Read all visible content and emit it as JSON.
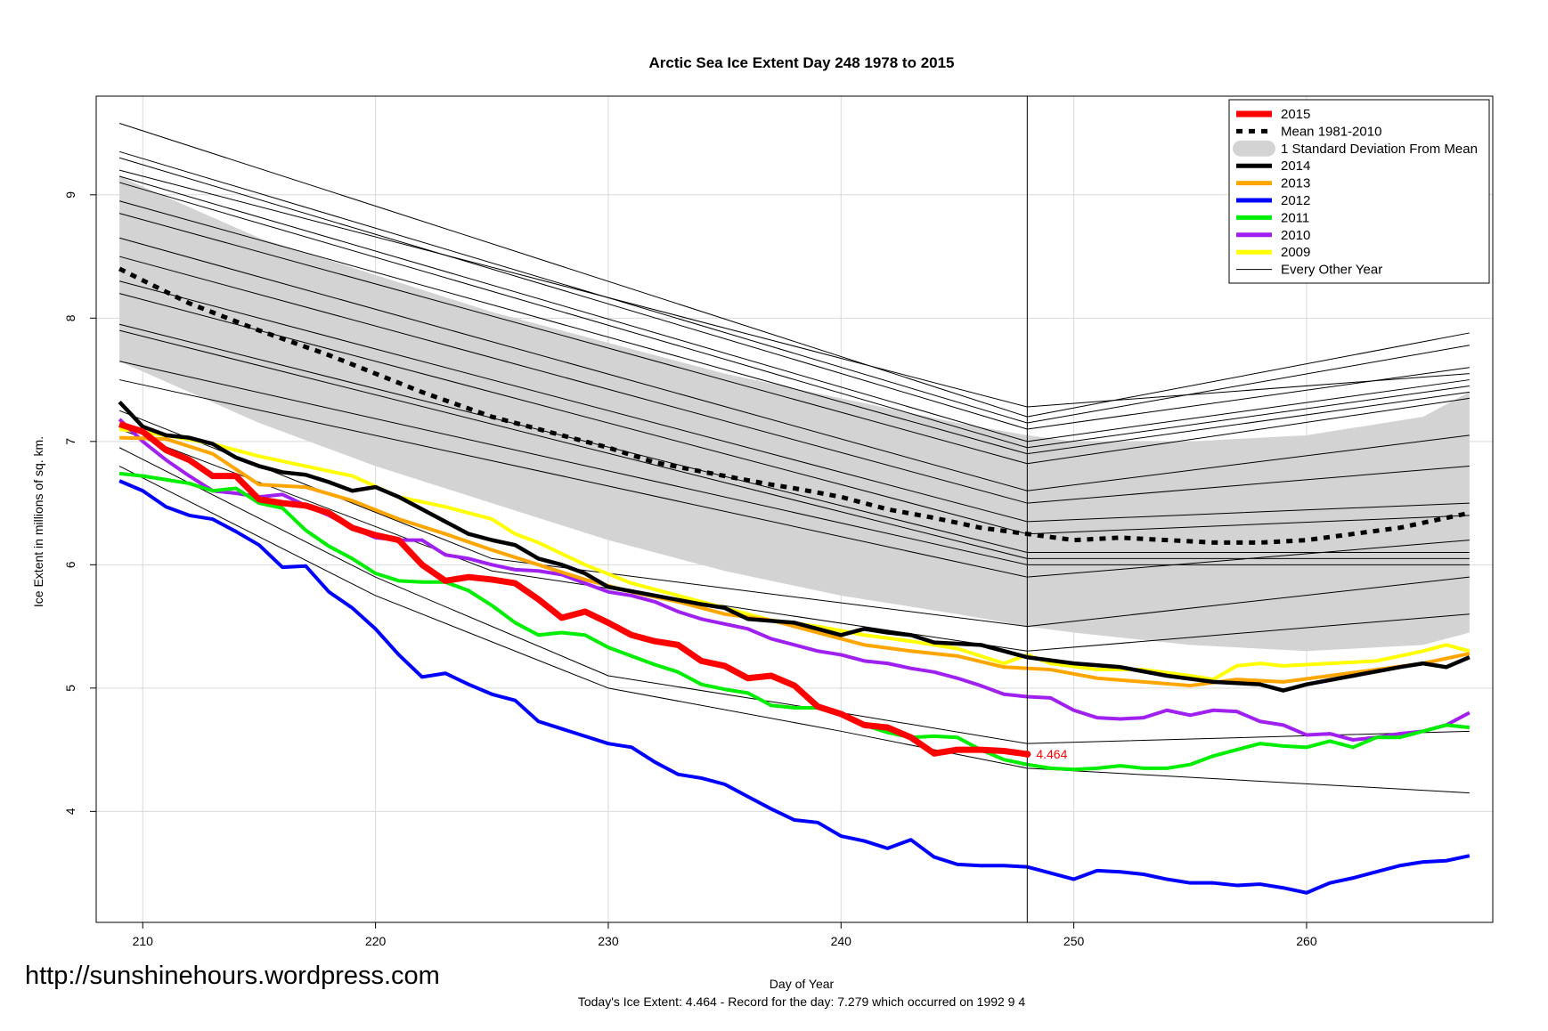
{
  "chart_data": {
    "type": "line",
    "title": "Arctic Sea Ice Extent Day 248 1978 to 2015",
    "xlabel": "Day of Year",
    "ylabel": "Ice Extent in millions of sq. km.",
    "subtitle": "Today's Ice Extent: 4.464  - Record for the day: 7.279 which occurred on 1992 9 4",
    "xlim": [
      208,
      268
    ],
    "ylim": [
      3.1,
      9.8
    ],
    "x_ticks": [
      210,
      220,
      230,
      240,
      250,
      260
    ],
    "y_ticks": [
      4,
      5,
      6,
      7,
      8,
      9
    ],
    "current_day": 248,
    "grid": true,
    "legend_position": "top-right",
    "annotation": {
      "x": 248,
      "y": 4.464,
      "text": "4.464",
      "color": "#ff0000"
    },
    "band": {
      "name": "1 Standard Deviation From Mean",
      "color": "#d3d3d3",
      "x": [
        209,
        215,
        220,
        225,
        230,
        235,
        240,
        245,
        248,
        250,
        255,
        260,
        265,
        267
      ],
      "upper": [
        9.15,
        8.65,
        8.35,
        8.05,
        7.8,
        7.55,
        7.35,
        7.15,
        7.05,
        7.0,
        7.0,
        7.05,
        7.2,
        7.4
      ],
      "lower": [
        7.65,
        7.15,
        6.8,
        6.5,
        6.2,
        5.95,
        5.75,
        5.6,
        5.5,
        5.45,
        5.35,
        5.3,
        5.35,
        5.45
      ]
    },
    "series": [
      {
        "name": "2015",
        "color": "#ff0000",
        "width": 7,
        "dash": "",
        "x": [
          209,
          210,
          211,
          212,
          213,
          214,
          215,
          216,
          217,
          218,
          219,
          220,
          221,
          222,
          223,
          224,
          225,
          226,
          227,
          228,
          229,
          230,
          231,
          232,
          233,
          234,
          235,
          236,
          237,
          238,
          239,
          240,
          241,
          242,
          243,
          244,
          245,
          246,
          247,
          248
        ],
        "values": [
          7.14,
          7.08,
          6.93,
          6.85,
          6.72,
          6.72,
          6.53,
          6.5,
          6.48,
          6.42,
          6.3,
          6.24,
          6.2,
          6.0,
          5.87,
          5.9,
          5.88,
          5.85,
          5.72,
          5.57,
          5.62,
          5.53,
          5.43,
          5.38,
          5.35,
          5.22,
          5.18,
          5.08,
          5.1,
          5.02,
          4.85,
          4.79,
          4.7,
          4.68,
          4.6,
          4.47,
          4.5,
          4.5,
          4.49,
          4.464
        ]
      },
      {
        "name": "Mean 1981-2010",
        "color": "#000000",
        "width": 5,
        "dash": "7,7",
        "x": [
          209,
          212,
          215,
          218,
          220,
          222,
          225,
          228,
          230,
          232,
          235,
          237,
          238,
          240,
          242,
          244,
          246,
          248,
          250,
          252,
          254,
          256,
          258,
          260,
          262,
          264,
          267
        ],
        "values": [
          8.4,
          8.12,
          7.9,
          7.7,
          7.55,
          7.4,
          7.2,
          7.05,
          6.95,
          6.83,
          6.72,
          6.65,
          6.62,
          6.55,
          6.45,
          6.38,
          6.3,
          6.25,
          6.2,
          6.22,
          6.2,
          6.18,
          6.18,
          6.2,
          6.25,
          6.3,
          6.42
        ]
      },
      {
        "name": "2014",
        "color": "#000000",
        "width": 4.5,
        "dash": "",
        "x": [
          209,
          210,
          211,
          212,
          213,
          214,
          215,
          216,
          217,
          218,
          219,
          220,
          221,
          222,
          223,
          224,
          225,
          226,
          227,
          228,
          229,
          230,
          232,
          234,
          235,
          236,
          238,
          240,
          241,
          242,
          243,
          244,
          246,
          248,
          250,
          252,
          254,
          256,
          258,
          259,
          260,
          262,
          264,
          265,
          266,
          267
        ],
        "values": [
          7.32,
          7.12,
          7.05,
          7.03,
          6.98,
          6.87,
          6.8,
          6.75,
          6.73,
          6.67,
          6.6,
          6.63,
          6.55,
          6.45,
          6.35,
          6.25,
          6.2,
          6.16,
          6.05,
          6.0,
          5.93,
          5.82,
          5.75,
          5.68,
          5.65,
          5.56,
          5.53,
          5.43,
          5.48,
          5.45,
          5.43,
          5.37,
          5.35,
          5.25,
          5.2,
          5.17,
          5.1,
          5.05,
          5.03,
          4.98,
          5.03,
          5.1,
          5.17,
          5.2,
          5.17,
          5.25
        ]
      },
      {
        "name": "2013",
        "color": "#ffa500",
        "width": 4,
        "dash": "",
        "x": [
          209,
          211,
          213,
          215,
          217,
          219,
          221,
          223,
          225,
          227,
          229,
          231,
          233,
          235,
          237,
          239,
          241,
          243,
          245,
          247,
          249,
          251,
          253,
          255,
          257,
          259,
          261,
          263,
          265,
          267
        ],
        "values": [
          7.03,
          7.02,
          6.9,
          6.65,
          6.63,
          6.52,
          6.37,
          6.25,
          6.12,
          6.0,
          5.88,
          5.78,
          5.7,
          5.6,
          5.55,
          5.45,
          5.35,
          5.3,
          5.26,
          5.17,
          5.15,
          5.08,
          5.05,
          5.02,
          5.07,
          5.05,
          5.1,
          5.15,
          5.2,
          5.28
        ]
      },
      {
        "name": "2012",
        "color": "#0000ff",
        "width": 4,
        "dash": "",
        "x": [
          209,
          210,
          211,
          212,
          213,
          214,
          215,
          216,
          217,
          218,
          219,
          220,
          221,
          222,
          223,
          224,
          225,
          226,
          227,
          228,
          229,
          230,
          231,
          232,
          233,
          234,
          235,
          236,
          237,
          238,
          239,
          240,
          241,
          242,
          243,
          244,
          245,
          246,
          247,
          248,
          249,
          250,
          251,
          252,
          253,
          254,
          255,
          256,
          257,
          258,
          259,
          260,
          261,
          262,
          263,
          264,
          265,
          266,
          267
        ],
        "values": [
          6.68,
          6.6,
          6.47,
          6.4,
          6.37,
          6.27,
          6.16,
          5.98,
          5.99,
          5.78,
          5.65,
          5.48,
          5.27,
          5.09,
          5.12,
          5.03,
          4.95,
          4.9,
          4.73,
          4.67,
          4.61,
          4.55,
          4.52,
          4.4,
          4.3,
          4.27,
          4.22,
          4.12,
          4.02,
          3.93,
          3.91,
          3.8,
          3.76,
          3.7,
          3.77,
          3.63,
          3.57,
          3.56,
          3.56,
          3.55,
          3.5,
          3.45,
          3.52,
          3.51,
          3.49,
          3.45,
          3.42,
          3.42,
          3.4,
          3.41,
          3.38,
          3.34,
          3.42,
          3.46,
          3.51,
          3.56,
          3.59,
          3.6,
          3.64
        ]
      },
      {
        "name": "2011",
        "color": "#00ee00",
        "width": 4,
        "dash": "",
        "x": [
          209,
          210,
          211,
          212,
          213,
          214,
          215,
          216,
          217,
          218,
          219,
          220,
          221,
          222,
          223,
          224,
          225,
          226,
          227,
          228,
          229,
          230,
          231,
          232,
          233,
          234,
          235,
          236,
          237,
          238,
          239,
          240,
          241,
          242,
          243,
          244,
          245,
          246,
          247,
          248,
          249,
          250,
          251,
          252,
          253,
          254,
          255,
          256,
          257,
          258,
          259,
          260,
          261,
          262,
          263,
          264,
          265,
          266,
          267
        ],
        "values": [
          6.74,
          6.72,
          6.69,
          6.66,
          6.6,
          6.62,
          6.5,
          6.46,
          6.28,
          6.15,
          6.05,
          5.93,
          5.87,
          5.86,
          5.86,
          5.79,
          5.67,
          5.53,
          5.43,
          5.45,
          5.43,
          5.33,
          5.26,
          5.19,
          5.13,
          5.03,
          4.99,
          4.96,
          4.86,
          4.84,
          4.84,
          4.78,
          4.7,
          4.64,
          4.6,
          4.61,
          4.6,
          4.5,
          4.42,
          4.38,
          4.35,
          4.34,
          4.35,
          4.37,
          4.35,
          4.35,
          4.38,
          4.45,
          4.5,
          4.55,
          4.53,
          4.52,
          4.57,
          4.52,
          4.6,
          4.6,
          4.65,
          4.7,
          4.68
        ]
      },
      {
        "name": "2010",
        "color": "#a020f0",
        "width": 4,
        "dash": "",
        "x": [
          209,
          210,
          211,
          212,
          213,
          214,
          215,
          216,
          217,
          218,
          219,
          220,
          221,
          222,
          223,
          224,
          225,
          226,
          227,
          228,
          229,
          230,
          231,
          232,
          233,
          234,
          235,
          236,
          237,
          238,
          239,
          240,
          241,
          242,
          243,
          244,
          245,
          246,
          247,
          248,
          249,
          250,
          251,
          252,
          253,
          254,
          255,
          256,
          257,
          258,
          259,
          260,
          261,
          262,
          263,
          264,
          265,
          266,
          267
        ],
        "values": [
          7.18,
          7.0,
          6.85,
          6.72,
          6.6,
          6.58,
          6.55,
          6.57,
          6.48,
          6.4,
          6.3,
          6.22,
          6.2,
          6.2,
          6.08,
          6.05,
          6.0,
          5.96,
          5.95,
          5.92,
          5.85,
          5.78,
          5.75,
          5.7,
          5.62,
          5.56,
          5.52,
          5.48,
          5.4,
          5.35,
          5.3,
          5.27,
          5.22,
          5.2,
          5.16,
          5.13,
          5.08,
          5.02,
          4.95,
          4.93,
          4.92,
          4.82,
          4.76,
          4.75,
          4.76,
          4.82,
          4.78,
          4.82,
          4.81,
          4.73,
          4.7,
          4.62,
          4.63,
          4.58,
          4.6,
          4.63,
          4.65,
          4.7,
          4.8
        ]
      },
      {
        "name": "2009",
        "color": "#ffff00",
        "width": 4,
        "dash": "",
        "x": [
          209,
          211,
          213,
          215,
          217,
          219,
          221,
          223,
          225,
          226,
          227,
          229,
          231,
          233,
          235,
          237,
          239,
          241,
          243,
          245,
          247,
          248,
          249,
          251,
          253,
          255,
          256,
          257,
          258,
          259,
          261,
          263,
          265,
          266,
          267
        ],
        "values": [
          7.1,
          7.05,
          6.98,
          6.88,
          6.8,
          6.72,
          6.55,
          6.47,
          6.37,
          6.25,
          6.18,
          6.0,
          5.85,
          5.75,
          5.65,
          5.55,
          5.5,
          5.43,
          5.38,
          5.32,
          5.2,
          5.27,
          5.2,
          5.15,
          5.15,
          5.1,
          5.07,
          5.18,
          5.2,
          5.18,
          5.2,
          5.22,
          5.3,
          5.35,
          5.3
        ]
      },
      {
        "name": "Every Other Year",
        "color": "#000000",
        "width": 1,
        "dash": "",
        "x": [
          209,
          248,
          267
        ],
        "values": [
          9.58,
          7.2,
          7.88
        ]
      },
      {
        "name": "",
        "color": "#000000",
        "width": 1,
        "dash": "",
        "x": [
          209,
          248,
          267
        ],
        "values": [
          9.35,
          7.15,
          7.78
        ]
      },
      {
        "name": "",
        "color": "#000000",
        "width": 1,
        "dash": "",
        "x": [
          209,
          248,
          267
        ],
        "values": [
          9.3,
          7.1,
          7.6
        ]
      },
      {
        "name": "",
        "color": "#000000",
        "width": 1,
        "dash": "",
        "x": [
          209,
          248,
          267
        ],
        "values": [
          9.2,
          7.28,
          7.55
        ]
      },
      {
        "name": "",
        "color": "#000000",
        "width": 1,
        "dash": "",
        "x": [
          209,
          248,
          267
        ],
        "values": [
          9.15,
          7.0,
          7.5
        ]
      },
      {
        "name": "",
        "color": "#000000",
        "width": 1,
        "dash": "",
        "x": [
          209,
          248,
          267
        ],
        "values": [
          9.1,
          6.95,
          7.45
        ]
      },
      {
        "name": "",
        "color": "#000000",
        "width": 1,
        "dash": "",
        "x": [
          209,
          248,
          267
        ],
        "values": [
          8.95,
          6.9,
          7.4
        ]
      },
      {
        "name": "",
        "color": "#000000",
        "width": 1,
        "dash": "",
        "x": [
          209,
          248,
          267
        ],
        "values": [
          8.85,
          6.82,
          7.35
        ]
      },
      {
        "name": "",
        "color": "#000000",
        "width": 1,
        "dash": "",
        "x": [
          209,
          248,
          267
        ],
        "values": [
          8.65,
          6.6,
          7.05
        ]
      },
      {
        "name": "",
        "color": "#000000",
        "width": 1,
        "dash": "",
        "x": [
          209,
          248,
          267
        ],
        "values": [
          8.5,
          6.5,
          6.8
        ]
      },
      {
        "name": "",
        "color": "#000000",
        "width": 1,
        "dash": "",
        "x": [
          209,
          248,
          267
        ],
        "values": [
          8.3,
          6.35,
          6.5
        ]
      },
      {
        "name": "",
        "color": "#000000",
        "width": 1,
        "dash": "",
        "x": [
          209,
          248,
          267
        ],
        "values": [
          8.2,
          6.25,
          6.4
        ]
      },
      {
        "name": "",
        "color": "#000000",
        "width": 1,
        "dash": "",
        "x": [
          209,
          248,
          267
        ],
        "values": [
          7.95,
          6.1,
          6.1
        ]
      },
      {
        "name": "",
        "color": "#000000",
        "width": 1,
        "dash": "",
        "x": [
          209,
          248,
          267
        ],
        "values": [
          7.9,
          6.05,
          6.05
        ]
      },
      {
        "name": "",
        "color": "#000000",
        "width": 1,
        "dash": "",
        "x": [
          209,
          248,
          267
        ],
        "values": [
          7.65,
          6.0,
          6.0
        ]
      },
      {
        "name": "",
        "color": "#000000",
        "width": 1,
        "dash": "",
        "x": [
          209,
          248,
          267
        ],
        "values": [
          7.5,
          5.9,
          6.2
        ]
      },
      {
        "name": "",
        "color": "#000000",
        "width": 1,
        "dash": "",
        "x": [
          209,
          225,
          248,
          267
        ],
        "values": [
          7.25,
          6.05,
          5.5,
          5.9
        ]
      },
      {
        "name": "",
        "color": "#000000",
        "width": 1,
        "dash": "",
        "x": [
          209,
          225,
          248,
          267
        ],
        "values": [
          7.1,
          5.95,
          5.3,
          5.6
        ]
      },
      {
        "name": "",
        "color": "#000000",
        "width": 1,
        "dash": "",
        "x": [
          209,
          220,
          230,
          240,
          248,
          267
        ],
        "values": [
          6.95,
          5.9,
          5.1,
          4.8,
          4.55,
          4.65
        ]
      },
      {
        "name": "",
        "color": "#000000",
        "width": 1,
        "dash": "",
        "x": [
          209,
          220,
          230,
          240,
          248,
          267
        ],
        "values": [
          6.8,
          5.75,
          5.0,
          4.65,
          4.35,
          4.15
        ]
      }
    ]
  },
  "legend": [
    {
      "label": "2015",
      "color": "#ff0000",
      "kind": "thick"
    },
    {
      "label": "Mean 1981-2010",
      "color": "#000000",
      "kind": "dash"
    },
    {
      "label": "1 Standard Deviation From Mean",
      "color": "#d3d3d3",
      "kind": "box"
    },
    {
      "label": "2014",
      "color": "#000000",
      "kind": "thick"
    },
    {
      "label": "2013",
      "color": "#ffa500",
      "kind": "thick"
    },
    {
      "label": "2012",
      "color": "#0000ff",
      "kind": "thick"
    },
    {
      "label": "2011",
      "color": "#00ee00",
      "kind": "thick"
    },
    {
      "label": "2010",
      "color": "#a020f0",
      "kind": "thick"
    },
    {
      "label": "2009",
      "color": "#ffff00",
      "kind": "thick"
    },
    {
      "label": "Every Other Year",
      "color": "#000000",
      "kind": "thin"
    }
  ],
  "watermark": "http://sunshinehours.wordpress.com"
}
